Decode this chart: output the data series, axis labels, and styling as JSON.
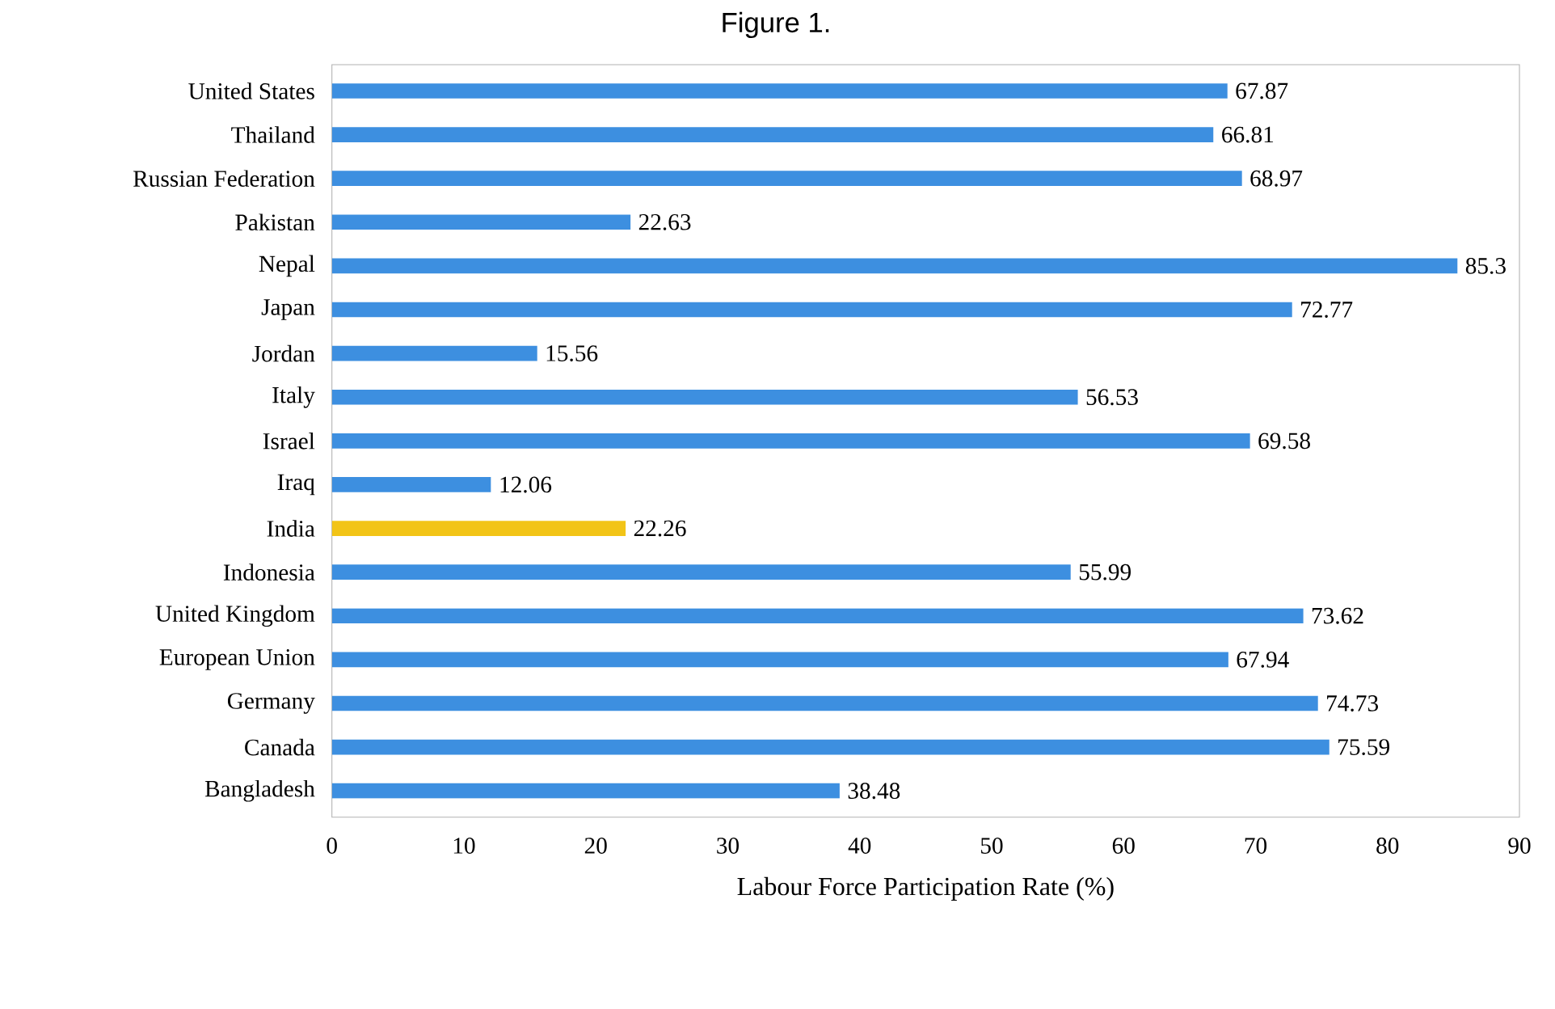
{
  "chart_data": {
    "type": "bar",
    "orientation": "horizontal",
    "title": "Figure 1.",
    "xlabel": "Labour Force Participation Rate (%)",
    "categories": [
      "United States",
      "Thailand",
      "Russian Federation",
      "Pakistan",
      "Nepal",
      "Japan",
      "Jordan",
      "Italy",
      "Israel",
      "Iraq",
      "India",
      "Indonesia",
      "United Kingdom",
      "European Union",
      "Germany",
      "Canada",
      "Bangladesh"
    ],
    "values": [
      67.87,
      66.81,
      68.97,
      22.63,
      85.3,
      72.77,
      15.56,
      56.53,
      69.58,
      12.06,
      22.26,
      55.99,
      73.62,
      67.94,
      74.73,
      75.59,
      38.48
    ],
    "colors": [
      "#3d8fe0",
      "#3d8fe0",
      "#3d8fe0",
      "#3d8fe0",
      "#3d8fe0",
      "#3d8fe0",
      "#3d8fe0",
      "#3d8fe0",
      "#3d8fe0",
      "#3d8fe0",
      "#f2c417",
      "#3d8fe0",
      "#3d8fe0",
      "#3d8fe0",
      "#3d8fe0",
      "#3d8fe0",
      "#3d8fe0"
    ],
    "xlim": [
      0,
      90
    ],
    "xticks": [
      0,
      10,
      20,
      30,
      40,
      50,
      60,
      70,
      80,
      90
    ],
    "data_labels": true,
    "grid": false
  }
}
